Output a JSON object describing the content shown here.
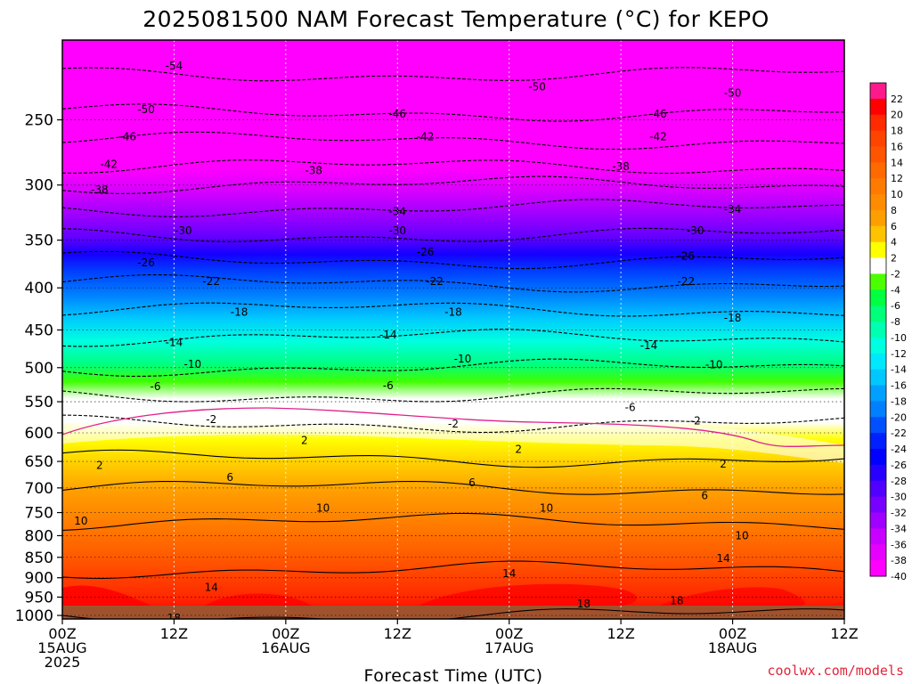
{
  "title": "2025081500 NAM Forecast Temperature (°C) for KEPO",
  "xlabel": "Forecast Time (UTC)",
  "credit": "coolwx.com/models",
  "colors": {
    "magenta": "#ff00ff",
    "violet": "#a000ff",
    "blue": "#0000ff",
    "cyan": "#00ffff",
    "green": "#00ff40",
    "white": "#ffffff",
    "yellow": "#ffff00",
    "orange": "#ff9900",
    "red": "#ff0000",
    "ground": "#a0522d",
    "freezing_line": "#e0208a"
  },
  "chart_data": {
    "type": "heatmap",
    "title": "2025081500 NAM Forecast Temperature (°C) for KEPO",
    "xlabel": "Forecast Time (UTC)",
    "ylabel": "",
    "y_scale": "log-pressure",
    "y_unit": "hPa",
    "y_range": [
      1010,
      200
    ],
    "y_ticks": [
      250,
      300,
      350,
      400,
      450,
      500,
      550,
      600,
      650,
      700,
      750,
      800,
      850,
      900,
      950,
      1000
    ],
    "x_range_hours": [
      0,
      84
    ],
    "x_ticks": [
      {
        "hour": 0,
        "lines": [
          "00Z",
          "15AUG",
          "2025"
        ]
      },
      {
        "hour": 12,
        "lines": [
          "12Z"
        ]
      },
      {
        "hour": 24,
        "lines": [
          "00Z",
          "16AUG"
        ]
      },
      {
        "hour": 36,
        "lines": [
          "12Z"
        ]
      },
      {
        "hour": 48,
        "lines": [
          "00Z",
          "17AUG"
        ]
      },
      {
        "hour": 60,
        "lines": [
          "12Z"
        ]
      },
      {
        "hour": 72,
        "lines": [
          "00Z",
          "18AUG"
        ]
      },
      {
        "hour": 84,
        "lines": [
          "12Z"
        ]
      }
    ],
    "grid": true,
    "colorbar": {
      "placement": "right",
      "labels": [
        22,
        20,
        18,
        16,
        14,
        12,
        10,
        8,
        6,
        4,
        2,
        -2,
        -4,
        -6,
        -8,
        -10,
        -12,
        -14,
        -16,
        -18,
        -20,
        -22,
        -24,
        -26,
        -28,
        -30,
        -32,
        -34,
        -36,
        -38,
        -40
      ],
      "colors": [
        "#ff1a8c",
        "#ff0000",
        "#ff2a00",
        "#ff4400",
        "#ff5500",
        "#ff6a00",
        "#ff7a00",
        "#ff8c00",
        "#ff9e00",
        "#ffc200",
        "#ffff00",
        "#ffffff",
        "#4cff00",
        "#00ff40",
        "#00ff7a",
        "#00ffb0",
        "#00ffe0",
        "#00e8ff",
        "#00c8ff",
        "#00a0ff",
        "#0080ff",
        "#0050ff",
        "#0020ff",
        "#0000ff",
        "#2800ff",
        "#5000ff",
        "#7800ff",
        "#a000ff",
        "#c800ff",
        "#e600ff",
        "#ff00ff"
      ]
    },
    "isotherm_profile_at_00Z_15AUG": [
      {
        "temp": 18,
        "pressure": 1000
      },
      {
        "temp": 14,
        "pressure": 880
      },
      {
        "temp": 10,
        "pressure": 770
      },
      {
        "temp": 6,
        "pressure": 700
      },
      {
        "temp": 2,
        "pressure": 645
      },
      {
        "temp": -2,
        "pressure": 585
      },
      {
        "temp": -6,
        "pressure": 540
      },
      {
        "temp": -10,
        "pressure": 500
      },
      {
        "temp": -14,
        "pressure": 460
      },
      {
        "temp": -18,
        "pressure": 425
      },
      {
        "temp": -22,
        "pressure": 395
      },
      {
        "temp": -26,
        "pressure": 370
      },
      {
        "temp": -30,
        "pressure": 345
      },
      {
        "temp": -34,
        "pressure": 320
      },
      {
        "temp": -38,
        "pressure": 300
      },
      {
        "temp": -42,
        "pressure": 285
      },
      {
        "temp": -46,
        "pressure": 265
      },
      {
        "temp": -50,
        "pressure": 245
      },
      {
        "temp": -54,
        "pressure": 220
      }
    ],
    "contour_labels": [
      {
        "text": "-54",
        "hour": 12,
        "pressure": 215
      },
      {
        "text": "-50",
        "hour": 9,
        "pressure": 243
      },
      {
        "text": "-46",
        "hour": 7,
        "pressure": 262
      },
      {
        "text": "-42",
        "hour": 5,
        "pressure": 283
      },
      {
        "text": "-38",
        "hour": 4,
        "pressure": 304
      },
      {
        "text": "-50",
        "hour": 51,
        "pressure": 228
      },
      {
        "text": "-46",
        "hour": 36,
        "pressure": 246
      },
      {
        "text": "-42",
        "hour": 39,
        "pressure": 262
      },
      {
        "text": "-38",
        "hour": 27,
        "pressure": 288
      },
      {
        "text": "-34",
        "hour": 36,
        "pressure": 323
      },
      {
        "text": "-30",
        "hour": 13,
        "pressure": 341
      },
      {
        "text": "-30",
        "hour": 36,
        "pressure": 341
      },
      {
        "text": "-26",
        "hour": 9,
        "pressure": 373
      },
      {
        "text": "-26",
        "hour": 39,
        "pressure": 362
      },
      {
        "text": "-22",
        "hour": 16,
        "pressure": 393
      },
      {
        "text": "-22",
        "hour": 40,
        "pressure": 393
      },
      {
        "text": "-18",
        "hour": 19,
        "pressure": 428
      },
      {
        "text": "-18",
        "hour": 42,
        "pressure": 428
      },
      {
        "text": "-14",
        "hour": 12,
        "pressure": 466
      },
      {
        "text": "-14",
        "hour": 35,
        "pressure": 456
      },
      {
        "text": "-10",
        "hour": 14,
        "pressure": 495
      },
      {
        "text": "-10",
        "hour": 43,
        "pressure": 488
      },
      {
        "text": "-6",
        "hour": 10,
        "pressure": 527
      },
      {
        "text": "-6",
        "hour": 35,
        "pressure": 526
      },
      {
        "text": "-2",
        "hour": 16,
        "pressure": 578
      },
      {
        "text": "-2",
        "hour": 42,
        "pressure": 585
      },
      {
        "text": "2",
        "hour": 26,
        "pressure": 613
      },
      {
        "text": "2",
        "hour": 4,
        "pressure": 657
      },
      {
        "text": "2",
        "hour": 49,
        "pressure": 628
      },
      {
        "text": "6",
        "hour": 18,
        "pressure": 680
      },
      {
        "text": "6",
        "hour": 44,
        "pressure": 690
      },
      {
        "text": "10",
        "hour": 2,
        "pressure": 768
      },
      {
        "text": "10",
        "hour": 28,
        "pressure": 741
      },
      {
        "text": "10",
        "hour": 52,
        "pressure": 741
      },
      {
        "text": "14",
        "hour": 16,
        "pressure": 925
      },
      {
        "text": "14",
        "hour": 48,
        "pressure": 890
      },
      {
        "text": "18",
        "hour": 12,
        "pressure": 1008
      },
      {
        "text": "18",
        "hour": 56,
        "pressure": 968
      },
      {
        "text": "-50",
        "hour": 72,
        "pressure": 232
      },
      {
        "text": "-46",
        "hour": 64,
        "pressure": 246
      },
      {
        "text": "-42",
        "hour": 64,
        "pressure": 262
      },
      {
        "text": "-38",
        "hour": 60,
        "pressure": 285
      },
      {
        "text": "-34",
        "hour": 72,
        "pressure": 321
      },
      {
        "text": "-30",
        "hour": 68,
        "pressure": 341
      },
      {
        "text": "-26",
        "hour": 67,
        "pressure": 366
      },
      {
        "text": "-22",
        "hour": 67,
        "pressure": 393
      },
      {
        "text": "-18",
        "hour": 72,
        "pressure": 435
      },
      {
        "text": "-14",
        "hour": 63,
        "pressure": 470
      },
      {
        "text": "-10",
        "hour": 70,
        "pressure": 496
      },
      {
        "text": "-6",
        "hour": 61,
        "pressure": 559
      },
      {
        "text": "-2",
        "hour": 68,
        "pressure": 580
      },
      {
        "text": "2",
        "hour": 71,
        "pressure": 655
      },
      {
        "text": "6",
        "hour": 69,
        "pressure": 715
      },
      {
        "text": "10",
        "hour": 73,
        "pressure": 800
      },
      {
        "text": "14",
        "hour": 71,
        "pressure": 853
      },
      {
        "text": "18",
        "hour": 66,
        "pressure": 960
      }
    ]
  }
}
